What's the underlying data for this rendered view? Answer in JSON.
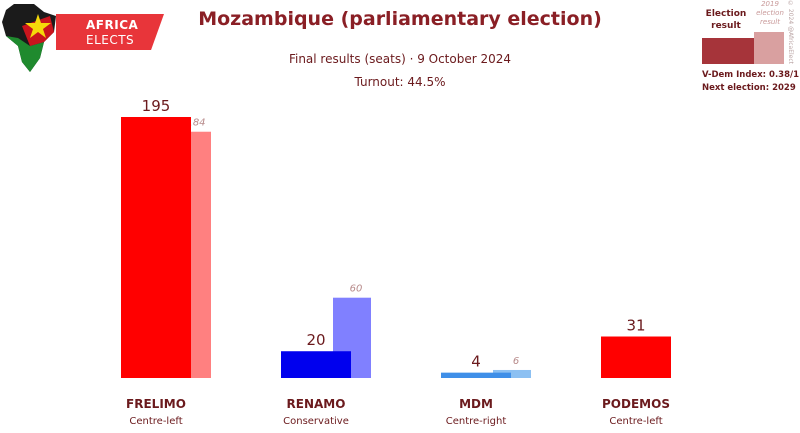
{
  "header": {
    "title": "Mozambique (parliamentary election)",
    "subtitle": "Final results (seats) · 9 October 2024",
    "turnout": "Turnout: 44.5%"
  },
  "logo": {
    "line1": "AFRICA",
    "line2": "ELECTS"
  },
  "legend": {
    "current_label": "Election result",
    "previous_label": "2019 election result",
    "vdem": "V-Dem Index: 0.38/1",
    "next_election": "Next election: 2029"
  },
  "copyright": "© 2024 @AfricaElect",
  "chart_data": {
    "type": "bar",
    "categories": [
      "FRELIMO",
      "RENAMO",
      "MDM",
      "PODEMOS"
    ],
    "subcategories": [
      "Centre-left",
      "Conservative",
      "Centre-right",
      "Centre-left"
    ],
    "series": [
      {
        "name": "Election result",
        "values": [
          195,
          20,
          4,
          31
        ]
      },
      {
        "name": "2019 election result",
        "values": [
          184,
          60,
          6,
          null
        ]
      }
    ],
    "colors": [
      "#ff0000",
      "#0000ee",
      "#3f8fe8",
      "#ff0000"
    ],
    "previous_colors": [
      "#ff8080",
      "#8080ff",
      "#8cc0f2",
      "#ff8080"
    ],
    "ylim": [
      0,
      195
    ],
    "grid": false,
    "legend_position": "top-right"
  }
}
